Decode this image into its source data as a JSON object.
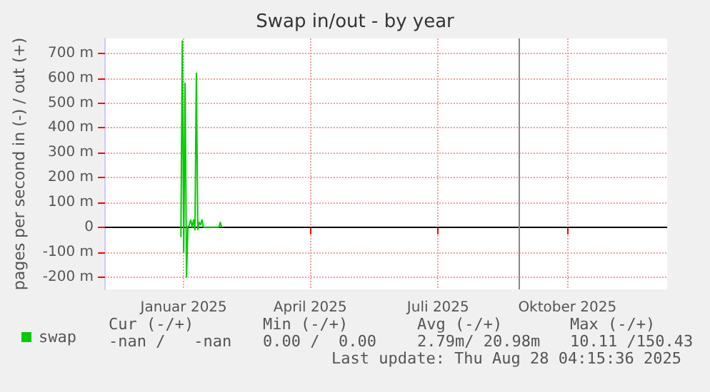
{
  "chart_data": {
    "type": "line",
    "title": "Swap in/out - by year",
    "ylabel": "pages per second in (-) / out (+)",
    "x": [
      "2024-12-30",
      "2024-12-31",
      "2025-01-01",
      "2025-01-02",
      "2025-01-03",
      "2025-01-04",
      "2025-01-05",
      "2025-01-06",
      "2025-01-07",
      "2025-01-08",
      "2025-01-09",
      "2025-01-10",
      "2025-01-11",
      "2025-01-12",
      "2025-01-13",
      "2025-01-14",
      "2025-01-15",
      "2025-01-26",
      "2025-01-27",
      "2025-01-28"
    ],
    "series": [
      {
        "name": "swap",
        "color": "#00cc00",
        "values": [
          -40,
          750,
          -100,
          580,
          -200,
          0,
          10,
          30,
          0,
          30,
          -10,
          620,
          -10,
          20,
          10,
          30,
          0,
          0,
          20,
          0
        ]
      }
    ],
    "xlim": [
      "2024-11-06",
      "2025-12-11"
    ],
    "xticks": [
      {
        "value": "2025-01-01",
        "label": "Januar 2025"
      },
      {
        "value": "2025-04-01",
        "label": "April 2025"
      },
      {
        "value": "2025-07-01",
        "label": "Juli 2025"
      },
      {
        "value": "2025-10-01",
        "label": "Oktober 2025"
      }
    ],
    "ylim": [
      -250,
      760
    ],
    "yticks": [
      {
        "value": -200,
        "label": "-200 m"
      },
      {
        "value": -100,
        "label": "-100 m"
      },
      0,
      {
        "value": 100,
        "label": "100 m"
      },
      {
        "value": 200,
        "label": "200 m"
      },
      {
        "value": 300,
        "label": "300 m"
      },
      {
        "value": 400,
        "label": "400 m"
      },
      {
        "value": 500,
        "label": "500 m"
      },
      {
        "value": 600,
        "label": "600 m"
      },
      {
        "value": 700,
        "label": "700 m"
      }
    ],
    "ref_lines": [
      {
        "axis": "y",
        "value": 0,
        "color": "#000000"
      },
      {
        "axis": "x",
        "value": "2025-08-28",
        "color": "#888888"
      }
    ],
    "grid": true,
    "legend": "bottom left",
    "marker": "none",
    "line_style": "solid",
    "annotations": [
      "Cur (-/+)",
      "Min (-/+)",
      "Avg (-/+)",
      "Max (-/+)",
      "-nan /   -nan",
      "0.00 /  0.00",
      "2.79m/ 20.98m",
      "10.11 /150.43",
      "Last update: Thu Aug 28 04:15:36 2025"
    ]
  }
}
